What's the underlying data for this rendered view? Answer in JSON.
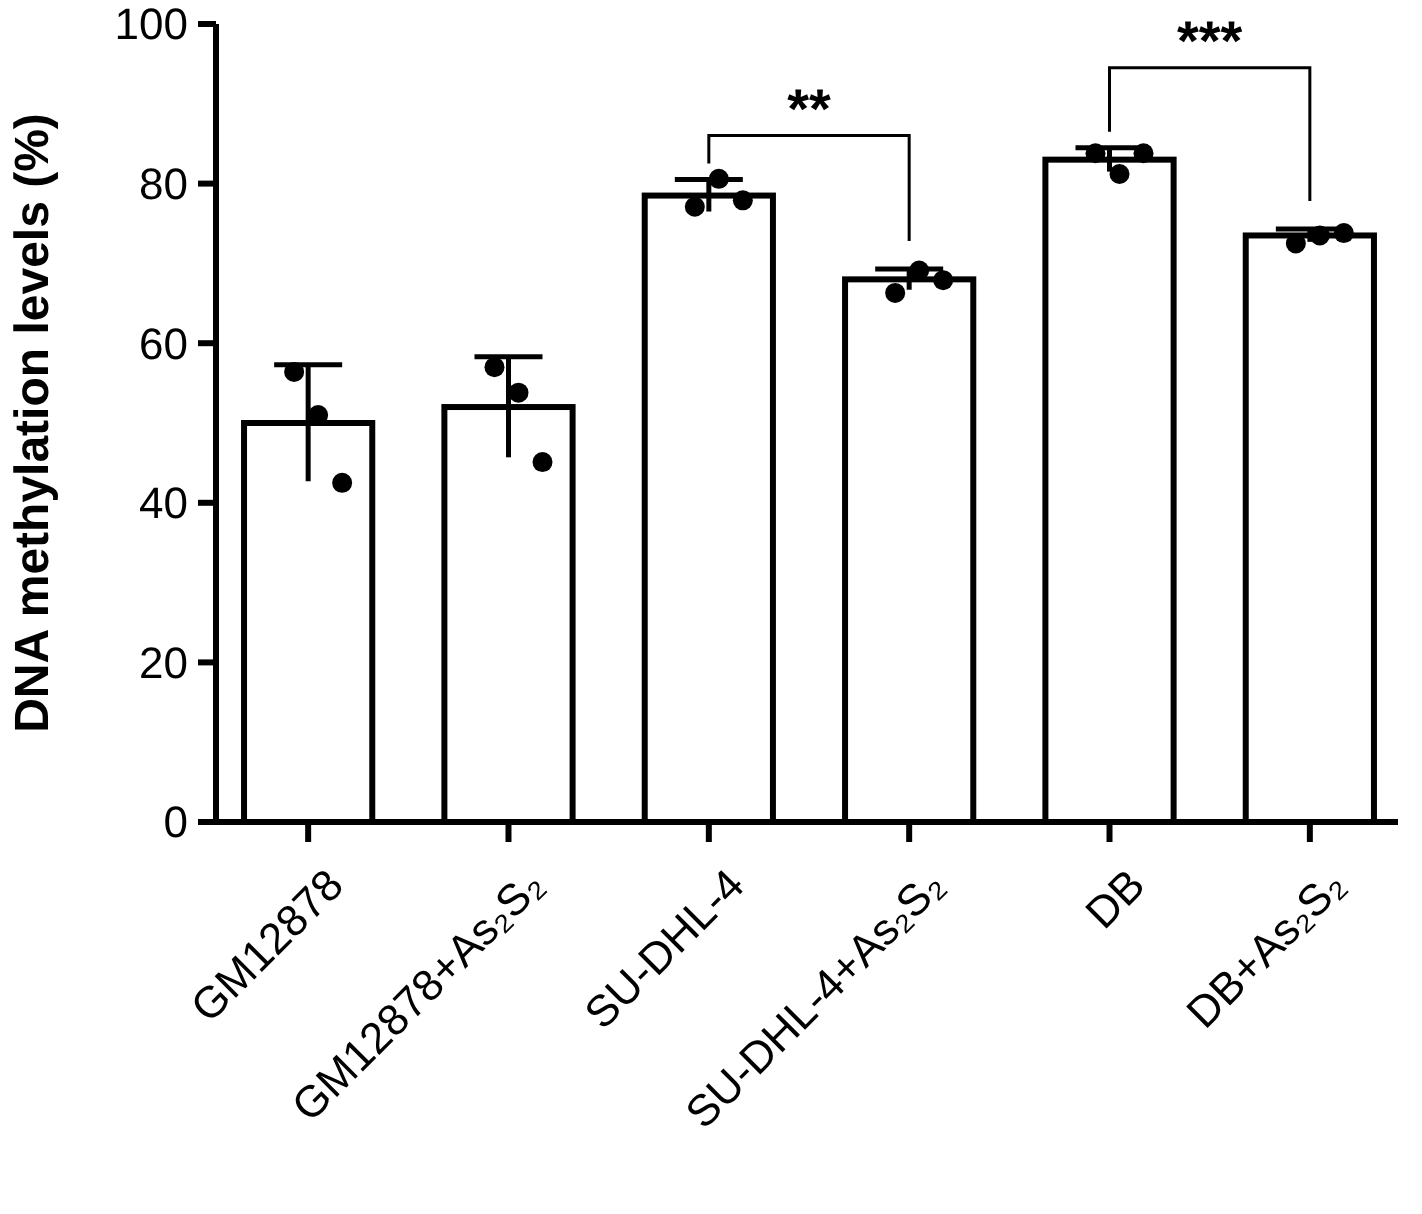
{
  "chart_data": {
    "type": "bar",
    "ylabel": "DNA methylation levels (%)",
    "categories": [
      "GM12878",
      "GM12878+As₂S₂",
      "SU-DHL-4",
      "SU-DHL-4+As₂S₂",
      "DB",
      "DB+As₂S₂"
    ],
    "ylim": [
      0,
      100
    ],
    "yticks": [
      0,
      20,
      40,
      60,
      80,
      100
    ],
    "grid": false,
    "series": [
      {
        "color": "#ffffff",
        "values": [
          50,
          52,
          78.5,
          68,
          83,
          73.5
        ],
        "errors": [
          7.3,
          6.3,
          2,
          1.3,
          1.5,
          0.8
        ]
      },
      {
        "type": "scatter",
        "color": "#000000",
        "x": [
          "GM12878",
          "GM12878+As₂S₂",
          "SU-DHL-4",
          "SU-DHL-4+As₂S₂",
          "DB",
          "DB+As₂S₂"
        ],
        "values": [
          56.4,
          57,
          77.1,
          66.3,
          83.8,
          72.5
        ]
      },
      {
        "type": "scatter",
        "color": "#000000",
        "x": [
          "GM12878",
          "GM12878+As₂S₂",
          "SU-DHL-4",
          "SU-DHL-4+As₂S₂",
          "DB",
          "DB+As₂S₂"
        ],
        "values": [
          51,
          53.8,
          80.6,
          69.1,
          81.2,
          73.5
        ]
      },
      {
        "type": "scatter",
        "color": "#000000",
        "x": [
          "GM12878",
          "GM12878+As₂S₂",
          "SU-DHL-4",
          "SU-DHL-4+As₂S₂",
          "DB",
          "DB+As₂S₂"
        ],
        "values": [
          42.5,
          45.1,
          77.9,
          67.9,
          83.8,
          73.8
        ]
      }
    ],
    "annotations": [
      "**",
      "***"
    ]
  }
}
